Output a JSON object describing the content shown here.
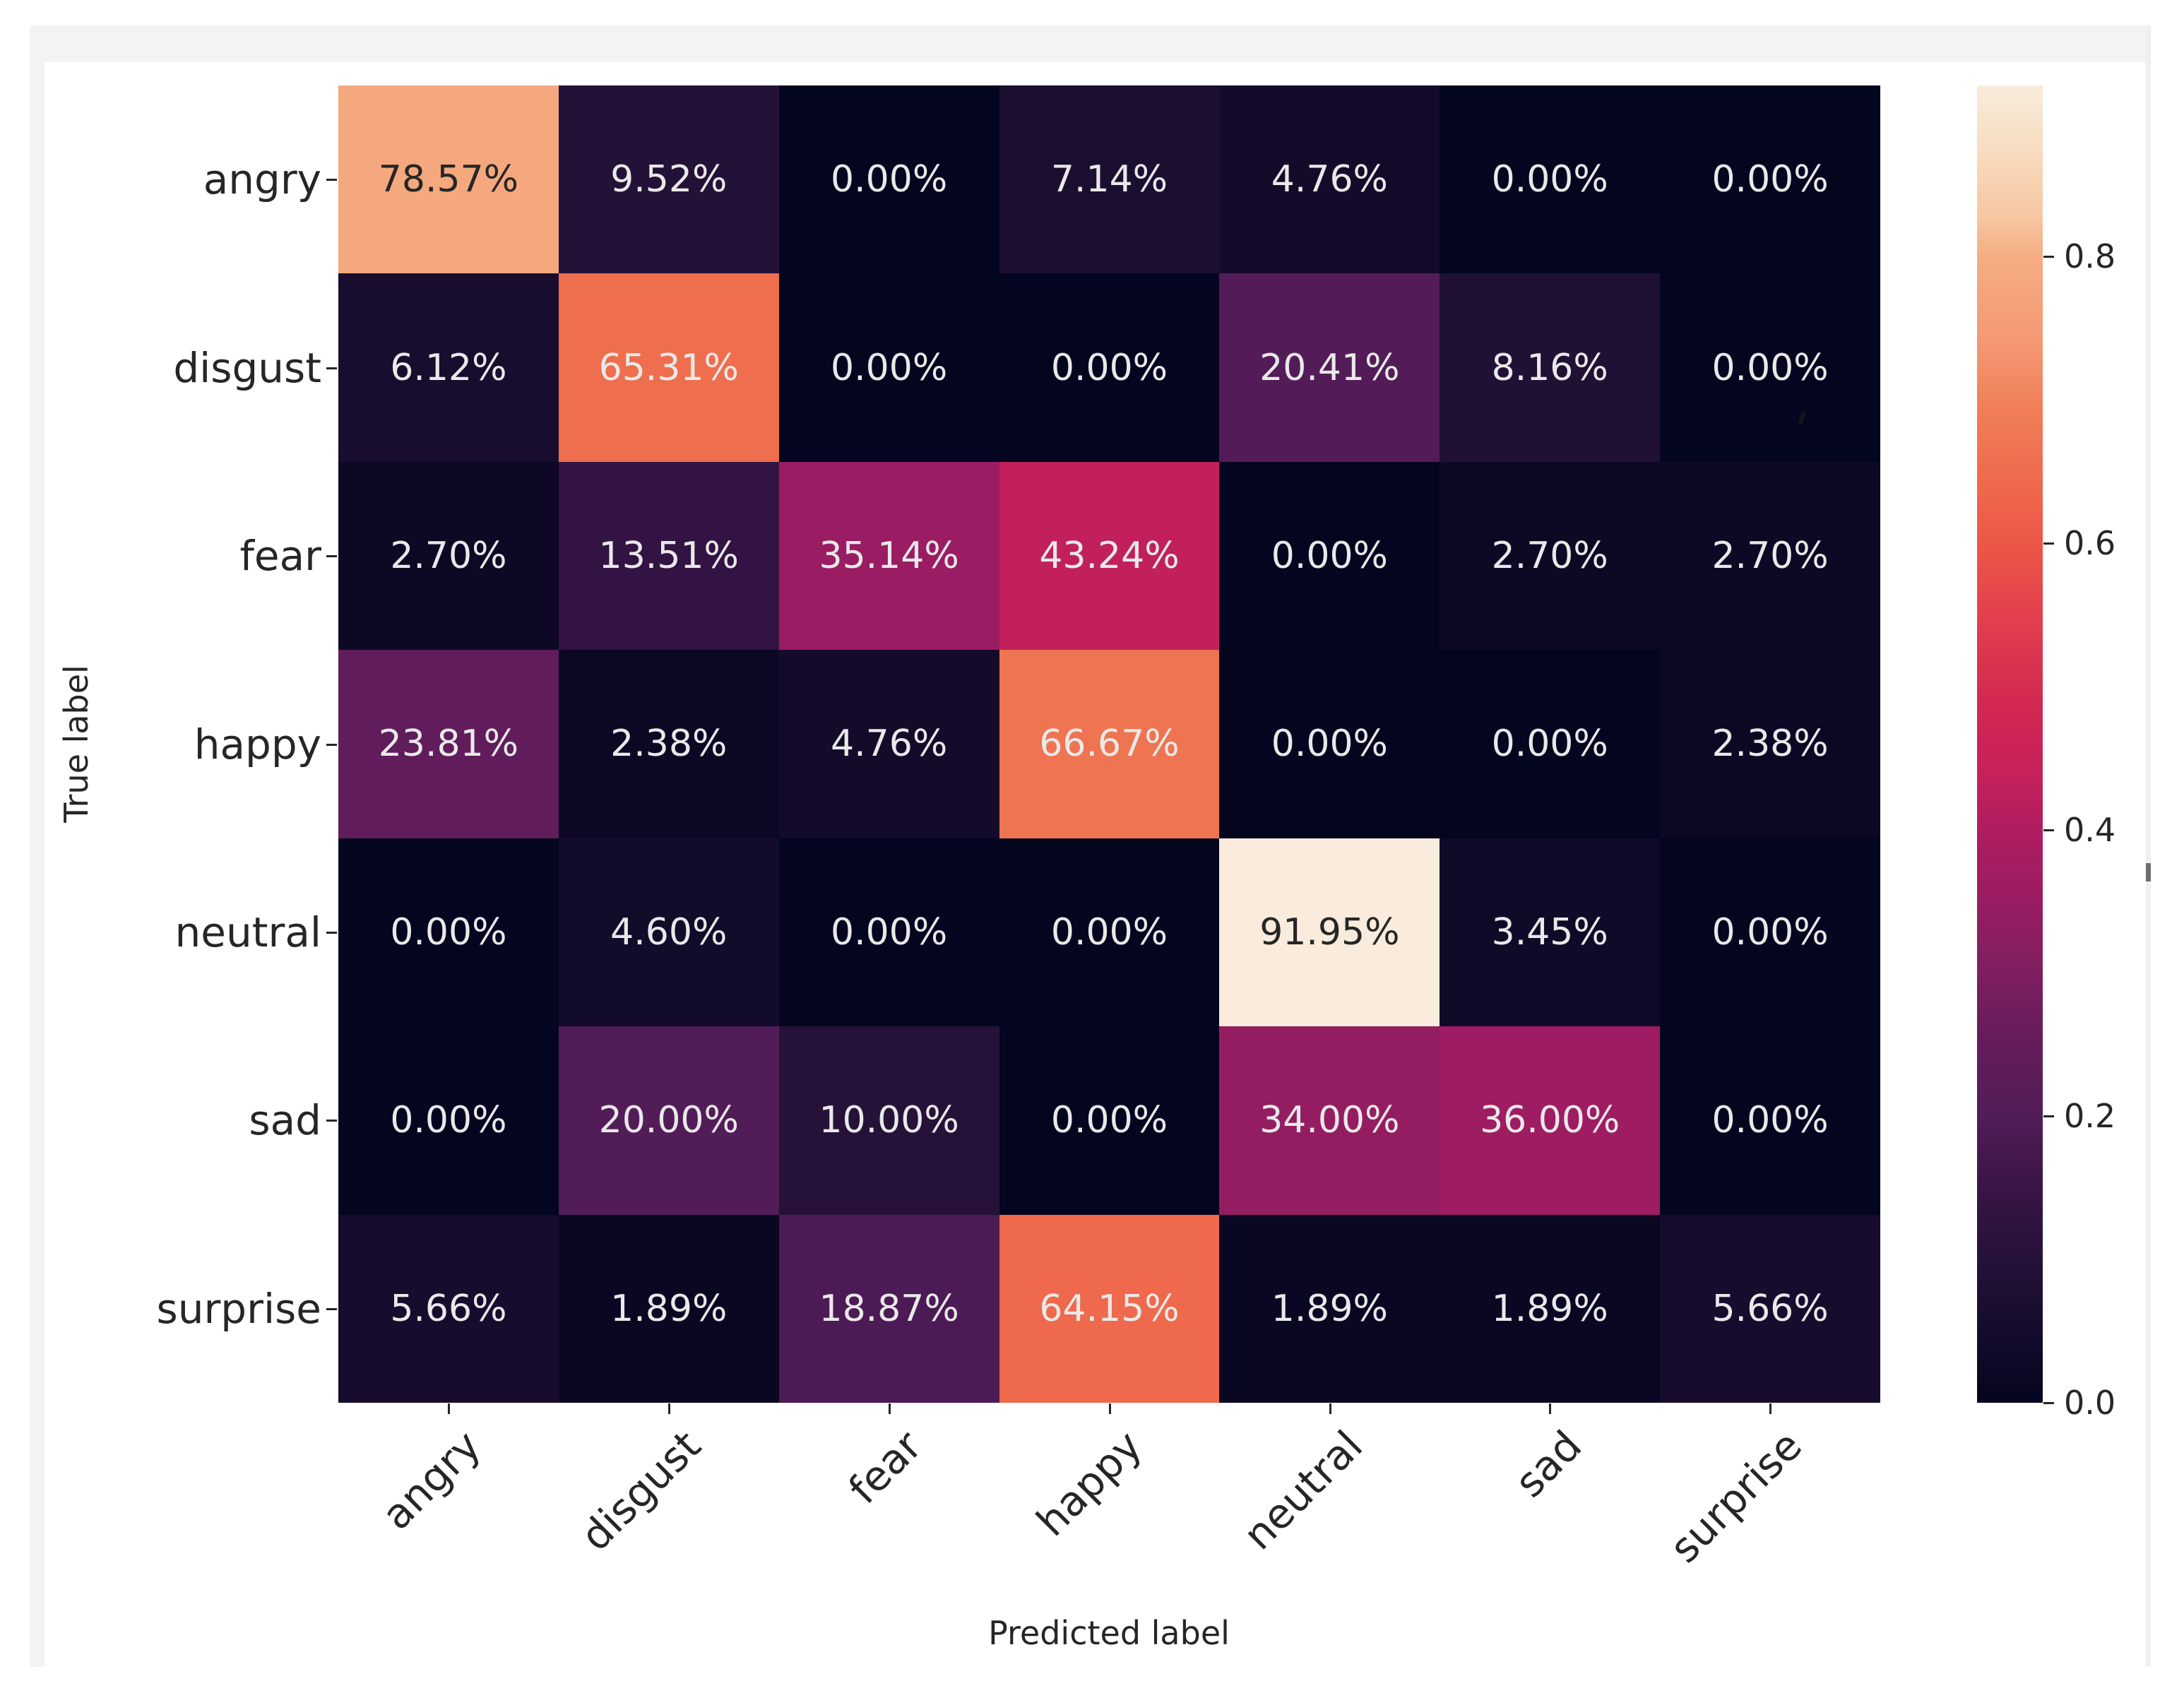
{
  "page": {
    "background": "#ffffff",
    "panel_background": "#f3f3f5",
    "figure_background": "#ffffff",
    "scrollbar": {
      "thumb_color": "#6f6f6f",
      "track_color": "#efeff1"
    }
  },
  "chart_data": {
    "type": "heatmap",
    "title": "",
    "xlabel": "Predicted label",
    "ylabel": "True label",
    "x_categories": [
      "angry",
      "disgust",
      "fear",
      "happy",
      "neutral",
      "sad",
      "surprise"
    ],
    "y_categories": [
      "angry",
      "disgust",
      "fear",
      "happy",
      "neutral",
      "sad",
      "surprise"
    ],
    "values_pct": [
      [
        78.57,
        9.52,
        0,
        7.14,
        4.76,
        0,
        0
      ],
      [
        6.12,
        65.31,
        0,
        0,
        20.41,
        8.16,
        0
      ],
      [
        2.7,
        13.51,
        35.14,
        43.24,
        0,
        2.7,
        2.7
      ],
      [
        23.81,
        2.38,
        4.76,
        66.67,
        0,
        0,
        2.38
      ],
      [
        0,
        4.6,
        0,
        0,
        91.95,
        3.45,
        0
      ],
      [
        0,
        20.0,
        10.0,
        0,
        34.0,
        36.0,
        0
      ],
      [
        5.66,
        1.89,
        18.87,
        64.15,
        1.89,
        1.89,
        5.66
      ]
    ],
    "value_format": "0.00%",
    "vmax_pct": 91.95,
    "grid": false,
    "colorbar": {
      "position": "right",
      "tick_labels": [
        "0.8",
        "0.6",
        "0.4",
        "0.2",
        "0.0"
      ],
      "tick_values": [
        0.8,
        0.6,
        0.4,
        0.2,
        0.0
      ],
      "scale_max": 0.9195
    },
    "colormap": {
      "name": "rocket",
      "stops": [
        [
          0.0,
          "#04051e"
        ],
        [
          0.05,
          "#130b2a"
        ],
        [
          0.11,
          "#261239"
        ],
        [
          0.16,
          "#381446"
        ],
        [
          0.218,
          "#521c58"
        ],
        [
          0.28,
          "#671c5c"
        ],
        [
          0.33,
          "#801f60"
        ],
        [
          0.384,
          "#9b1c62"
        ],
        [
          0.435,
          "#b01d60"
        ],
        [
          0.48,
          "#c6215b"
        ],
        [
          0.529,
          "#d22752"
        ],
        [
          0.6,
          "#e2414d"
        ],
        [
          0.65,
          "#ec5646"
        ],
        [
          0.7,
          "#ef6a4c"
        ],
        [
          0.76,
          "#f08159"
        ],
        [
          0.8,
          "#f49671"
        ],
        [
          0.87,
          "#f5ad81"
        ],
        [
          0.9,
          "#f7c6a2"
        ],
        [
          0.95,
          "#f8dcc0"
        ],
        [
          1.0,
          "#f9ecdc"
        ]
      ]
    },
    "annotation_text_dark": "#262626",
    "annotation_text_light": "#e9e9e9",
    "tick_color": "#262626",
    "label_color": "#262626"
  }
}
